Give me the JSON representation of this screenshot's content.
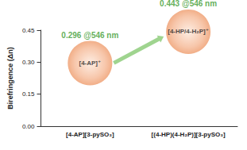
{
  "chart_data": {
    "type": "scatter",
    "y_label": "Birefringence (Δn)",
    "categories": [
      "[4-AP][3-pySO₃]",
      "[(4-HP)(4-H₂P)][3-pySO₃]"
    ],
    "values": [
      0.296,
      0.443
    ],
    "value_labels": [
      "0.296 @546 nm",
      "0.443 @546 nm"
    ],
    "annotations": [
      "[4-AP]⁺",
      "[4-HP/4-H₂P]⁺"
    ],
    "color": "#f5b895",
    "ylim": [
      0,
      0.45
    ],
    "yticks": [
      {
        "value": 0,
        "label": "0.00"
      },
      {
        "value": 0.15,
        "label": "0.15"
      },
      {
        "value": 0.3,
        "label": "0.30"
      },
      {
        "value": 0.45,
        "label": "0.45"
      }
    ],
    "grid": false,
    "data_labels": true
  }
}
